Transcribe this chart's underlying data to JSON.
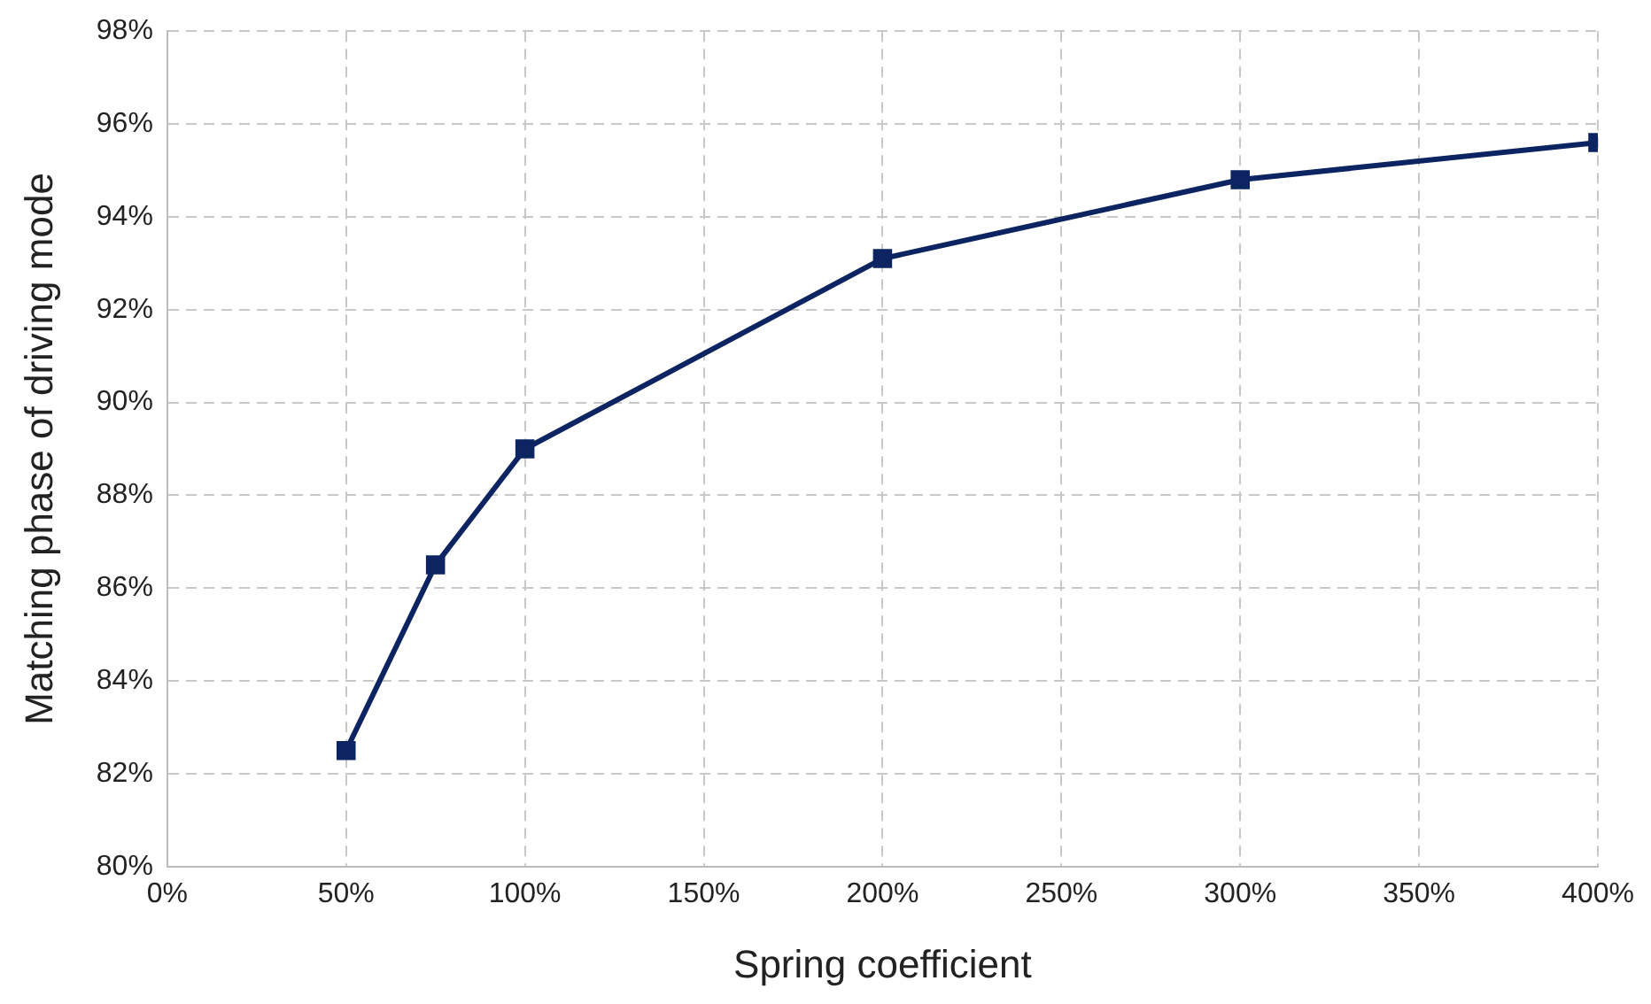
{
  "chart_data": {
    "type": "line",
    "xlabel": "Spring coefficient",
    "ylabel": "Matching phase of driving mode",
    "x": [
      50,
      75,
      100,
      200,
      300,
      400
    ],
    "series": [
      {
        "color": "#0c2461",
        "values": [
          82.5,
          86.5,
          89,
          93.1,
          94.8,
          95.6
        ]
      }
    ],
    "xlim": [
      0,
      400
    ],
    "xticks": [
      {
        "value": 0,
        "label": "0%"
      },
      {
        "value": 50,
        "label": "50%"
      },
      {
        "value": 100,
        "label": "100%"
      },
      {
        "value": 150,
        "label": "150%"
      },
      {
        "value": 200,
        "label": "200%"
      },
      {
        "value": 250,
        "label": "250%"
      },
      {
        "value": 300,
        "label": "300%"
      },
      {
        "value": 350,
        "label": "350%"
      },
      {
        "value": 400,
        "label": "400%"
      }
    ],
    "ylim": [
      80,
      98
    ],
    "yticks": [
      {
        "value": 80,
        "label": "80%"
      },
      {
        "value": 82,
        "label": "82%"
      },
      {
        "value": 84,
        "label": "84%"
      },
      {
        "value": 86,
        "label": "86%"
      },
      {
        "value": 88,
        "label": "88%"
      },
      {
        "value": 90,
        "label": "90%"
      },
      {
        "value": 92,
        "label": "92%"
      },
      {
        "value": 94,
        "label": "94%"
      },
      {
        "value": 96,
        "label": "96%"
      },
      {
        "value": 98,
        "label": "98%"
      }
    ],
    "grid": true,
    "legend": false,
    "marker": "square",
    "line_style": "solid"
  }
}
